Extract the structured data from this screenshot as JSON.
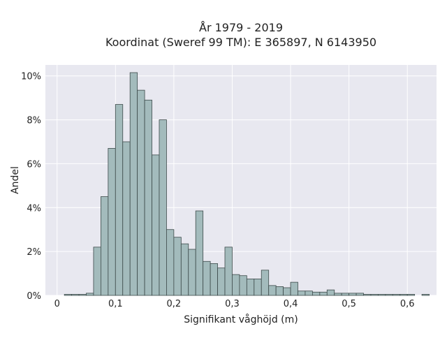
{
  "chart_data": {
    "type": "bar",
    "title_line1": "År 1979 - 2019",
    "title_line2": "Koordinat (Sweref 99 TM): E 365897, N 6143950",
    "xlabel": "Signifikant våghöjd (m)",
    "ylabel": "Andel",
    "xlim": [
      -0.02,
      0.65
    ],
    "ylim": [
      0,
      10.5
    ],
    "bin_width": 0.0125,
    "bin_start": 0.0125,
    "values": [
      0.05,
      0.05,
      0.05,
      0.1,
      2.2,
      4.5,
      6.7,
      8.7,
      7.0,
      10.15,
      9.35,
      8.9,
      6.4,
      8.0,
      3.0,
      2.65,
      2.35,
      2.1,
      3.85,
      1.55,
      1.45,
      1.25,
      2.2,
      0.95,
      0.9,
      0.75,
      0.75,
      1.15,
      0.45,
      0.4,
      0.35,
      0.6,
      0.2,
      0.2,
      0.15,
      0.15,
      0.25,
      0.1,
      0.1,
      0.1,
      0.1,
      0.05,
      0.05,
      0.05,
      0.05,
      0.05,
      0.05,
      0.05,
      0.0,
      0.05
    ],
    "xticks": [
      0,
      0.1,
      0.2,
      0.3,
      0.4,
      0.5,
      0.6
    ],
    "xtick_labels": [
      "0",
      "0,1",
      "0,2",
      "0,3",
      "0,4",
      "0,5",
      "0,6"
    ],
    "yticks": [
      0,
      2,
      4,
      6,
      8,
      10
    ],
    "ytick_labels": [
      "0%",
      "2%",
      "4%",
      "6%",
      "8%",
      "10%"
    ],
    "grid": true,
    "colors": {
      "bar_fill": "#a3bbbc",
      "bar_stroke": "#3d4a4a",
      "plot_bg": "#e8e8f0",
      "grid": "#ffffff"
    }
  }
}
